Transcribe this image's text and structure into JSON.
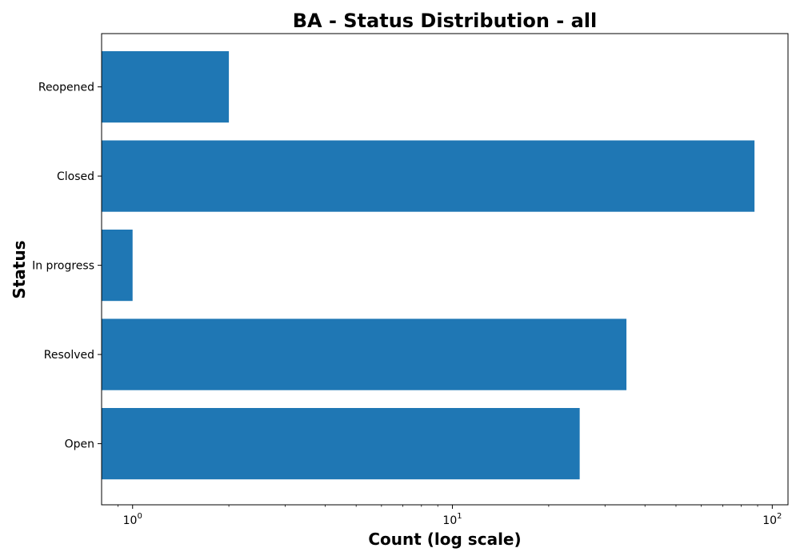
{
  "chart_data": {
    "type": "bar",
    "orientation": "horizontal",
    "title": "BA - Status Distribution - all",
    "xlabel": "Count (log scale)",
    "ylabel": "Status",
    "xscale": "log",
    "xlim": [
      0.8,
      112
    ],
    "x_ticks": [
      {
        "value": 1,
        "base": "10",
        "exp": "0"
      },
      {
        "value": 10,
        "base": "10",
        "exp": "1"
      },
      {
        "value": 100,
        "base": "10",
        "exp": "2"
      }
    ],
    "categories": [
      "Open",
      "Resolved",
      "In progress",
      "Closed",
      "Reopened"
    ],
    "values": [
      25,
      35,
      1,
      88,
      2
    ],
    "color": "#1f77b4",
    "grid": false,
    "legend": "none"
  }
}
